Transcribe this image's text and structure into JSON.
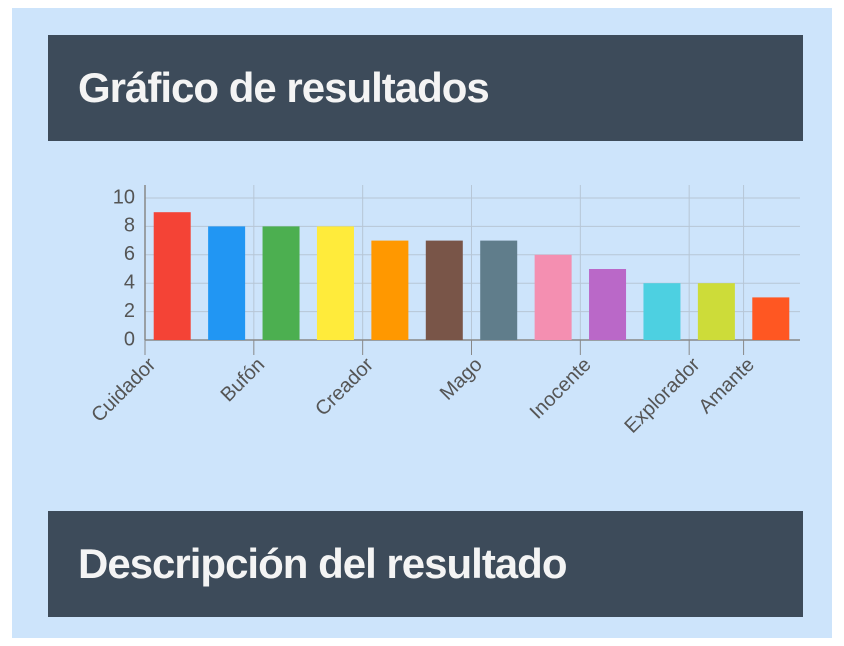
{
  "headers": {
    "chart_title": "Gráfico de resultados",
    "description_title": "Descripción del resultado"
  },
  "chart_data": {
    "type": "bar",
    "categories": [
      "Cuidador",
      null,
      "Bufón",
      null,
      "Creador",
      null,
      "Mago",
      null,
      "Inocente",
      null,
      "Explorador",
      "Amante"
    ],
    "values": [
      9,
      8,
      8,
      8,
      7,
      7,
      7,
      6,
      5,
      4,
      4,
      3
    ],
    "colors": [
      "#f44336",
      "#2196f3",
      "#4caf50",
      "#ffeb3b",
      "#ff9800",
      "#795548",
      "#607d8b",
      "#f48fb1",
      "#ba68c8",
      "#4dd0e1",
      "#cddc39",
      "#ff5722"
    ],
    "ylim": [
      0,
      10
    ],
    "yticks": [
      0,
      2,
      4,
      6,
      8,
      10
    ],
    "grid": true
  }
}
